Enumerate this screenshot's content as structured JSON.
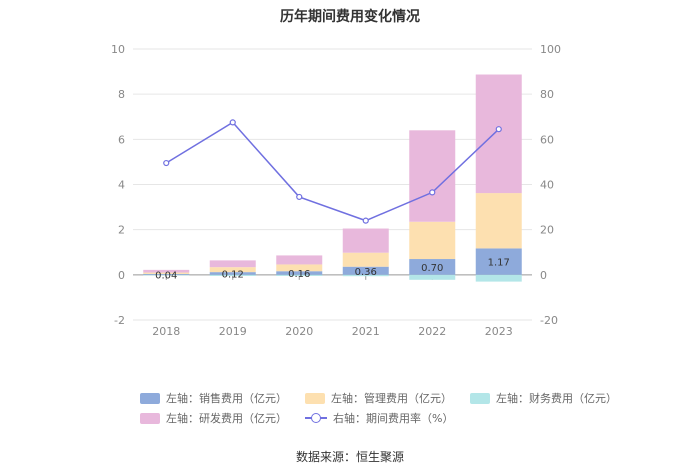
{
  "chart_data": {
    "type": "bar",
    "title": "历年期间费用变化情况",
    "categories": [
      "2018",
      "2019",
      "2020",
      "2021",
      "2022",
      "2023"
    ],
    "left_axis": {
      "min": -2,
      "max": 10,
      "ticks": [
        "-2",
        "0",
        "2",
        "4",
        "6",
        "8",
        "10"
      ]
    },
    "right_axis": {
      "min": -20,
      "max": 100,
      "ticks": [
        "-20",
        "0",
        "20",
        "40",
        "60",
        "80",
        "100"
      ]
    },
    "series": [
      {
        "name": "左轴：销售费用（亿元）",
        "type": "bar",
        "axis": "left",
        "color": "#8eaadb",
        "values": [
          0.04,
          0.12,
          0.16,
          0.36,
          0.7,
          1.17
        ],
        "labels": [
          "0.04",
          "0.12",
          "0.16",
          "0.36",
          "0.70",
          "1.17"
        ]
      },
      {
        "name": "左轴：管理费用（亿元）",
        "type": "bar",
        "axis": "left",
        "color": "#fde0b0",
        "values": [
          0.06,
          0.22,
          0.3,
          0.62,
          1.65,
          2.45
        ]
      },
      {
        "name": "左轴：财务费用（亿元）",
        "type": "bar",
        "axis": "left",
        "color": "#b3e6e8",
        "values": [
          -0.02,
          -0.05,
          -0.05,
          -0.06,
          -0.22,
          -0.3
        ]
      },
      {
        "name": "左轴：研发费用（亿元）",
        "type": "bar",
        "axis": "left",
        "color": "#e8b8dc",
        "values": [
          0.12,
          0.3,
          0.4,
          1.07,
          4.05,
          5.25
        ]
      },
      {
        "name": "右轴：期间费用率（%）",
        "type": "line",
        "axis": "right",
        "color": "#7070e0",
        "values": [
          49.5,
          67.5,
          34.5,
          24.0,
          36.5,
          64.5
        ]
      }
    ]
  },
  "source": "数据来源：恒生聚源"
}
